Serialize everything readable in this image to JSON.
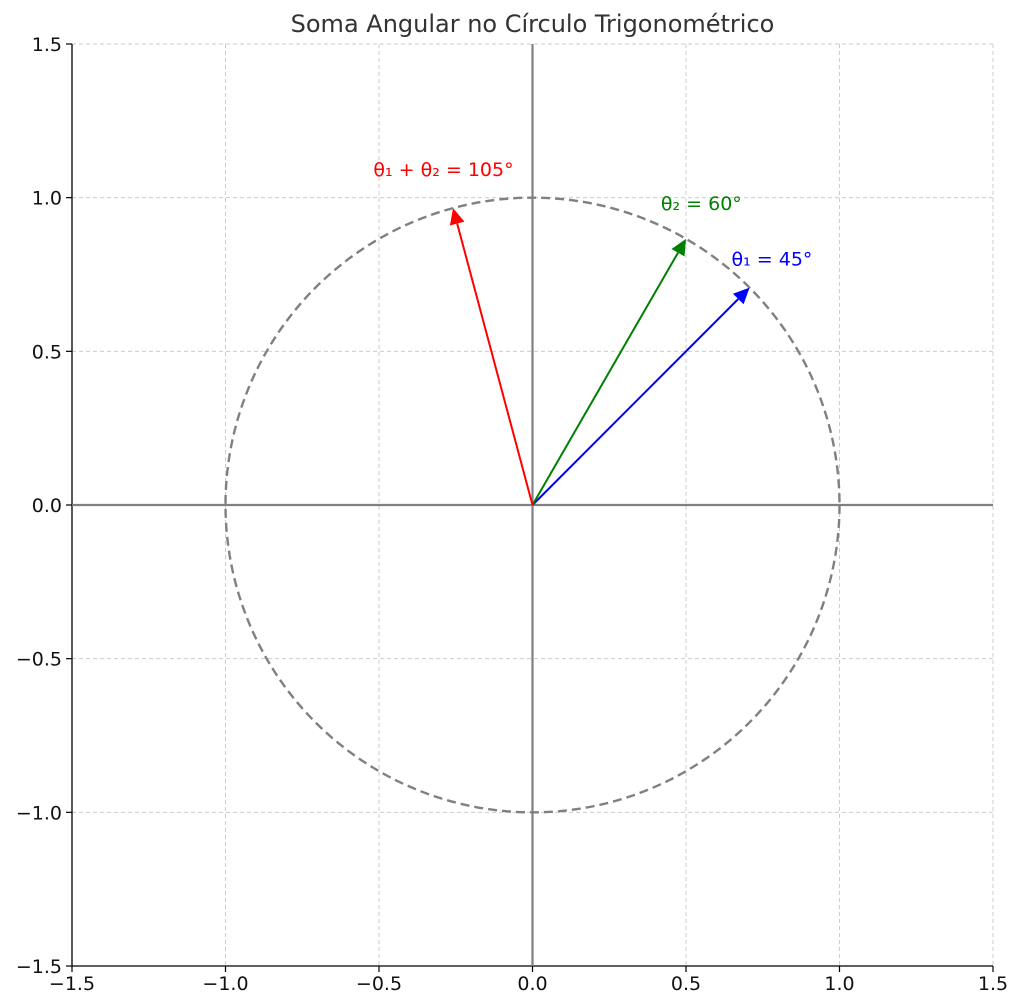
{
  "chart_data": {
    "type": "line",
    "title": "Soma Angular no Círculo Trigonométrico",
    "xlabel": "",
    "ylabel": "",
    "xlim": [
      -1.5,
      1.5
    ],
    "ylim": [
      -1.5,
      1.5
    ],
    "grid": true,
    "legend": "none",
    "x_ticks": [
      {
        "value": -1.5,
        "label": "−1.5"
      },
      {
        "value": -1.0,
        "label": "−1.0"
      },
      {
        "value": -0.5,
        "label": "−0.5"
      },
      {
        "value": 0.0,
        "label": "0.0"
      },
      {
        "value": 0.5,
        "label": "0.5"
      },
      {
        "value": 1.0,
        "label": "1.0"
      },
      {
        "value": 1.5,
        "label": "1.5"
      }
    ],
    "y_ticks": [
      {
        "value": -1.5,
        "label": "−1.5"
      },
      {
        "value": -1.0,
        "label": "−1.0"
      },
      {
        "value": -0.5,
        "label": "−0.5"
      },
      {
        "value": 0.0,
        "label": "0.0"
      },
      {
        "value": 0.5,
        "label": "0.5"
      },
      {
        "value": 1.0,
        "label": "1.0"
      },
      {
        "value": 1.5,
        "label": "1.5"
      }
    ],
    "unit_circle": {
      "center": [
        0,
        0
      ],
      "radius": 1,
      "style": "dashed",
      "color": "#808080"
    },
    "axes_lines_color": "#808080",
    "vectors": [
      {
        "id": "theta1",
        "angle_deg": 45,
        "x": 0.7071,
        "y": 0.7071,
        "color": "#0000ff",
        "label": "θ₁ = 45°",
        "label_pos": [
          0.78,
          0.78
        ]
      },
      {
        "id": "theta2",
        "angle_deg": 60,
        "x": 0.5,
        "y": 0.866,
        "color": "#008000",
        "label": "θ₂ = 60°",
        "label_pos": [
          0.55,
          0.96
        ]
      },
      {
        "id": "sum",
        "angle_deg": 105,
        "x": -0.2588,
        "y": 0.9659,
        "color": "#ff0000",
        "label": "θ₁ + θ₂ = 105°",
        "label_pos": [
          -0.29,
          1.07
        ]
      }
    ]
  }
}
